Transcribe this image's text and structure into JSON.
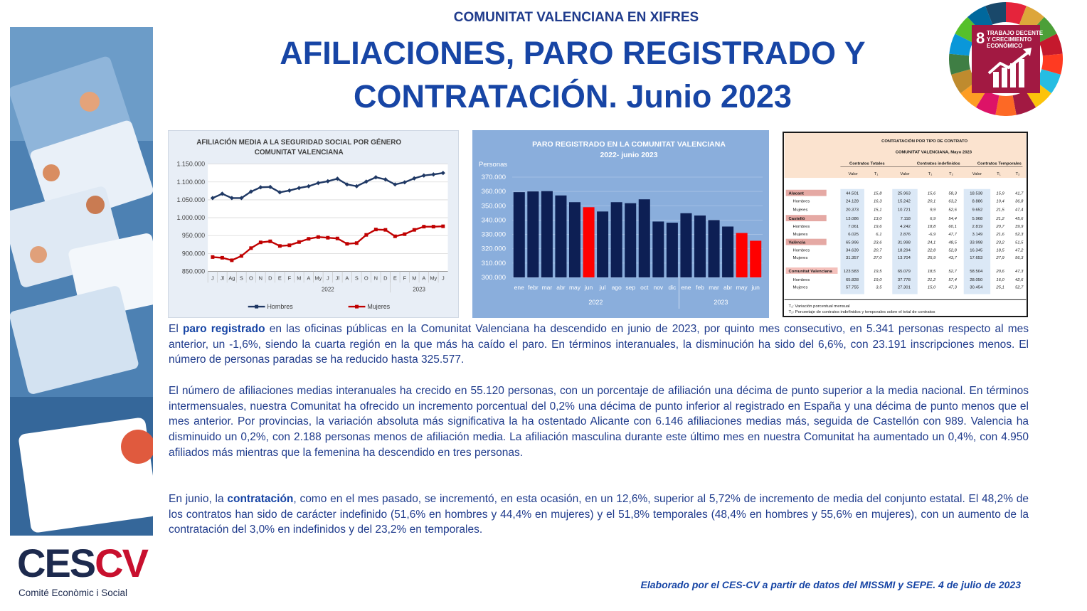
{
  "header": {
    "kicker": "COMUNITAT VALENCIANA EN XIFRES",
    "title_line1": "AFILIACIONES, PARO REGISTRADO Y",
    "title_line2": "CONTRATACIÓN. Junio 2023"
  },
  "sdg_badge": {
    "number": "8",
    "line1": "TRABAJO DECENTE",
    "line2": "Y CRECIMIENTO",
    "line3": "ECONÓMICO",
    "color": "#a21942"
  },
  "logo": {
    "letters_dark": "CES",
    "letters_red": "CV",
    "subtitle": "Comité Econòmic i Social"
  },
  "chart_data": [
    {
      "type": "line",
      "title": "AFILIACIÓN MEDIA A LA SEGURIDAD SOCIAL POR GÉNERO",
      "subtitle": "COMUNITAT VALENCIANA",
      "categories": [
        "J",
        "Jl",
        "Ag",
        "S",
        "O",
        "N",
        "D",
        "E",
        "F",
        "M",
        "A",
        "My",
        "J",
        "Jl",
        "A",
        "S",
        "O",
        "N",
        "D",
        "E",
        "F",
        "M",
        "A",
        "My",
        "J"
      ],
      "year_labels": [
        "2022",
        "2023"
      ],
      "ylim": [
        850000,
        1150000
      ],
      "yticks": [
        "850.000",
        "900.000",
        "950.000",
        "1.000.000",
        "1.050.000",
        "1.100.000",
        "1.150.000"
      ],
      "series": [
        {
          "name": "Hombres",
          "color": "#1f3864",
          "values": [
            1055000,
            1067000,
            1055000,
            1055000,
            1073000,
            1085000,
            1086000,
            1071000,
            1076000,
            1083000,
            1088000,
            1097000,
            1102000,
            1109000,
            1093000,
            1088000,
            1101000,
            1113000,
            1107000,
            1093000,
            1099000,
            1110000,
            1118000,
            1121000,
            1125000
          ]
        },
        {
          "name": "Mujeres",
          "color": "#c00000",
          "values": [
            890000,
            888000,
            881000,
            893000,
            915000,
            931000,
            934000,
            921000,
            923000,
            932000,
            941000,
            946000,
            944000,
            942000,
            927000,
            929000,
            952000,
            967000,
            966000,
            948000,
            954000,
            966000,
            975000,
            975000,
            976000
          ]
        }
      ]
    },
    {
      "type": "bar",
      "title": "PARO REGISTRADO EN LA COMUNITAT VALENCIANA",
      "subtitle": "2022- junio 2023",
      "ylabel": "Personas",
      "ylim": [
        300000,
        370000
      ],
      "yticks": [
        "300.000",
        "310.000",
        "320.000",
        "330.000",
        "340.000",
        "350.000",
        "360.000",
        "370.000"
      ],
      "categories": [
        "ene",
        "febr",
        "mar",
        "abr",
        "may",
        "jun",
        "jul",
        "ago",
        "sep",
        "oct",
        "nov",
        "dic",
        "ene",
        "feb",
        "mar",
        "abr",
        "may",
        "jun"
      ],
      "year_labels": [
        "2022",
        "2023"
      ],
      "values": [
        359500,
        360000,
        360200,
        357200,
        352500,
        349000,
        346000,
        352500,
        351800,
        354500,
        339000,
        338200,
        344800,
        343200,
        340000,
        335500,
        331000,
        325577
      ],
      "highlight_indices": [
        5,
        16,
        17
      ],
      "colors": {
        "bar": "#0d1f54",
        "highlight": "#ff0000"
      }
    }
  ],
  "contract_table": {
    "title": "CONTRATACIÓN POR TIPO DE CONTRATO",
    "subtitle": "COMUNITAT VALENCIANA, Mayo 2023",
    "groups": [
      "Contratos Totales",
      "Contratos indefinidos",
      "Contratos Temporales"
    ],
    "subheaders": [
      "Valor",
      "T₁",
      "Valor",
      "T₁",
      "T₂",
      "Valor",
      "T₁",
      "T₂"
    ],
    "rows": [
      [
        "Alacant",
        "44.501",
        "15,8",
        "25.963",
        "15,6",
        "58,3",
        "18.538",
        "15,9",
        "41,7"
      ],
      [
        "Hombres",
        "24.128",
        "16,3",
        "15.242",
        "20,1",
        "63,2",
        "8.886",
        "10,4",
        "36,8"
      ],
      [
        "Mujeres",
        "20.373",
        "15,1",
        "10.721",
        "9,9",
        "52,6",
        "9.652",
        "21,5",
        "47,4"
      ],
      [
        "Castelló",
        "13.086",
        "13,0",
        "7.118",
        "6,9",
        "54,4",
        "5.968",
        "21,2",
        "45,6"
      ],
      [
        "Hombres",
        "7.061",
        "19,6",
        "4.242",
        "18,8",
        "60,1",
        "2.819",
        "20,7",
        "39,9"
      ],
      [
        "Mujeres",
        "6.025",
        "6,1",
        "2.876",
        "-6,9",
        "47,7",
        "3.149",
        "21,6",
        "52,3"
      ],
      [
        "València",
        "65.996",
        "23,6",
        "31.998",
        "24,1",
        "48,5",
        "33.998",
        "23,2",
        "51,5"
      ],
      [
        "Hombres",
        "34.639",
        "20,7",
        "18.294",
        "22,8",
        "52,8",
        "16.345",
        "18,5",
        "47,2"
      ],
      [
        "Mujeres",
        "31.357",
        "27,0",
        "13.704",
        "25,9",
        "43,7",
        "17.653",
        "27,9",
        "56,3"
      ],
      [
        "Comunitat Valenciana",
        "123.583",
        "19,5",
        "65.079",
        "18,5",
        "52,7",
        "58.504",
        "20,6",
        "47,3"
      ],
      [
        "Hombres",
        "65.828",
        "19,0",
        "37.778",
        "21,2",
        "57,4",
        "28.050",
        "16,0",
        "42,6"
      ],
      [
        "Mujeres",
        "57.755",
        "3,5",
        "27.301",
        "15,0",
        "47,3",
        "30.454",
        "25,1",
        "52,7"
      ]
    ],
    "notes": [
      "T₁: Variación porcentual mensual",
      "T₂: Porcentaje de contratos indefinidos y temporales sobre el total de contratos"
    ]
  },
  "body": {
    "p1_pre": "El ",
    "p1_bold": "paro registrado",
    "p1_post": " en las oficinas públicas en la Comunitat Valenciana ha descendido en junio de 2023, por quinto mes consecutivo, en 5.341 personas respecto al mes anterior, un -1,6%, siendo la cuarta región en la que más ha caído el paro. En términos interanuales, la disminución ha sido del 6,6%, con 23.191 inscripciones menos. El número de personas paradas se ha reducido hasta 325.577.",
    "p2": "El número de afiliaciones medias interanuales ha crecido en 55.120 personas, con un porcentaje de afiliación una décima de punto superior a la media nacional. En términos intermensuales, nuestra Comunitat ha ofrecido un incremento porcentual del 0,2% una décima de punto inferior al registrado en España y una décima de punto menos que el mes anterior. Por provincias, la variación absoluta más significativa la ha ostentado Alicante con 6.146 afiliaciones medias más, seguida de Castellón con 989. Valencia ha disminuido un 0,2%, con 2.188 personas menos de afiliación media. La afiliación masculina durante este último mes en nuestra Comunitat ha aumentado un 0,4%, con 4.950 afiliados más mientras que la femenina ha descendido en tres personas.",
    "p3_pre": "En junio, la ",
    "p3_bold": "contratación",
    "p3_post": ", como en el mes pasado, se incrementó, en esta ocasión, en un 12,6%, superior al 5,72% de incremento de media del conjunto estatal. El 48,2% de los contratos han sido de carácter indefinido (51,6% en hombres y 44,4% en mujeres) y el 51,8% temporales (48,4% en hombres y 55,6% en mujeres), con un aumento de la contratación del 3,0% en indefinidos y del 23,2% en temporales."
  },
  "footer": {
    "credit": "Elaborado por el CES-CV a partir de datos del MISSMI y SEPE. 4 de julio de 2023"
  }
}
